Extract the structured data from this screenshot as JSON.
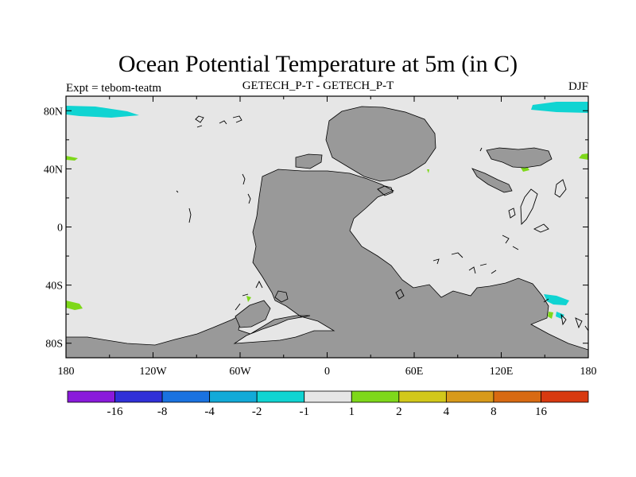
{
  "title": "Ocean Potential Temperature at 5m (in C)",
  "expt_label": "Expt = tebom-teatm",
  "subtitle": "GETECH_P-T - GETECH_P-T",
  "season": "DJF",
  "map": {
    "lon_ticks": [
      {
        "value": -180,
        "label": "180"
      },
      {
        "value": -120,
        "label": "120W"
      },
      {
        "value": -60,
        "label": "60W"
      },
      {
        "value": 0,
        "label": "0"
      },
      {
        "value": 60,
        "label": "60E"
      },
      {
        "value": 120,
        "label": "120E"
      },
      {
        "value": 180,
        "label": "180"
      }
    ],
    "lat_ticks": [
      {
        "value": 80,
        "label": "80N"
      },
      {
        "value": 40,
        "label": "40N"
      },
      {
        "value": 0,
        "label": "0"
      },
      {
        "value": -40,
        "label": "40S"
      },
      {
        "value": -80,
        "label": "80S"
      }
    ],
    "colors": {
      "ocean": "#e6e6e6",
      "land": "#999999"
    }
  },
  "colorbar": {
    "colors": [
      "#8a1adb",
      "#3030d8",
      "#1a72e0",
      "#12aad8",
      "#10d4d2",
      "#e6e6e6",
      "#7ed81a",
      "#d2c81a",
      "#d89a1a",
      "#d86a12",
      "#d83a10"
    ],
    "labels": [
      "-16",
      "-8",
      "-4",
      "-2",
      "-1",
      "1",
      "2",
      "4",
      "8",
      "16"
    ]
  }
}
